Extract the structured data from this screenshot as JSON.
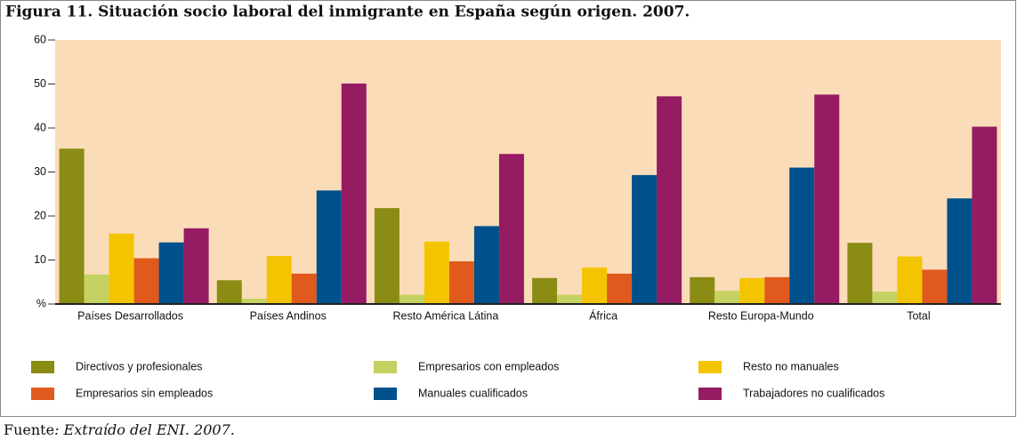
{
  "chart_data": {
    "type": "bar",
    "title": "Figura 11. Situación socio laboral del inmigrante en España según origen. 2007.",
    "categories": [
      "Países Desarrollados",
      "Países Andinos",
      "Resto América Látina",
      "África",
      "Resto Europa-Mundo",
      "Total"
    ],
    "series": [
      {
        "name": "Directivos y profesionales",
        "color": "#8b8c14",
        "values": [
          35.3,
          5.4,
          21.8,
          5.9,
          6.1,
          13.9
        ]
      },
      {
        "name": "Empresarios con empleados",
        "color": "#c5d161",
        "values": [
          6.7,
          1.2,
          2.1,
          2.1,
          3.0,
          2.8
        ]
      },
      {
        "name": "Resto no manuales",
        "color": "#f5c400",
        "values": [
          16,
          10.9,
          14.2,
          8.3,
          5.9,
          10.8
        ]
      },
      {
        "name": "Empresarios sin empleados",
        "color": "#e05a1e",
        "values": [
          10.4,
          6.9,
          9.7,
          6.9,
          6.1,
          7.8
        ]
      },
      {
        "name": "Manuales cualificados",
        "color": "#00508c",
        "values": [
          14,
          25.8,
          17.7,
          29.3,
          31.0,
          24
        ]
      },
      {
        "name": "Trabajadores no cualificados",
        "color": "#951b63",
        "values": [
          17.2,
          50.1,
          34.1,
          47.2,
          47.6,
          40.3
        ]
      }
    ],
    "ylim": [
      0,
      60
    ],
    "yticks": [
      {
        "value": 0,
        "label": "%"
      },
      10,
      20,
      30,
      40,
      50,
      60
    ],
    "grid": false
  },
  "footer": {
    "label": "Fuente",
    "source": ": Extraído del ENI. 2007."
  }
}
